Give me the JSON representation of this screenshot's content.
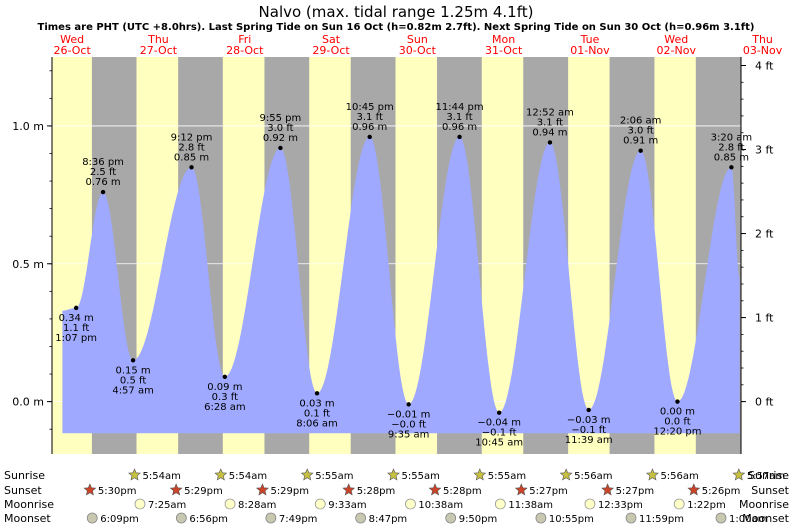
{
  "header": {
    "title": "Nalvo (max. tidal range 1.25m 4.1ft)",
    "subtitle": "Times are PHT (UTC +8.0hrs). Last Spring Tide on Sun 16 Oct (h=0.82m 2.7ft). Next Spring Tide on Sun 30 Oct (h=0.96m 3.1ft)"
  },
  "colors": {
    "day": "#ffffc0",
    "night": "#a8a8a8",
    "tide": "#9fa9ff",
    "red_date": "#ff0000",
    "grid": "#ffffff"
  },
  "chart_data": {
    "type": "area",
    "title": "Nalvo (max. tidal range 1.25m 4.1ft)",
    "x_unit": "hours since Wed 26-Oct 00:00 PHT",
    "xlim": [
      6.4,
      198.0
    ],
    "y_left": {
      "ylim": [
        -0.19,
        1.25
      ],
      "ticks": [
        0.0,
        0.5,
        1.0
      ],
      "tick_labels": [
        "0.0 m",
        "0.5 m",
        "1.0 m"
      ]
    },
    "y_right": {
      "ticks_ft": [
        0,
        1,
        2,
        3,
        4
      ],
      "tick_labels": [
        "0 ft",
        "1 ft",
        "2 ft",
        "3 ft",
        "4 ft"
      ]
    },
    "days": [
      {
        "dow": "Wed",
        "date": "26-Oct",
        "noon": 12
      },
      {
        "dow": "Thu",
        "date": "27-Oct",
        "noon": 36
      },
      {
        "dow": "Fri",
        "date": "28-Oct",
        "noon": 60
      },
      {
        "dow": "Sat",
        "date": "29-Oct",
        "noon": 84
      },
      {
        "dow": "Sun",
        "date": "30-Oct",
        "noon": 108
      },
      {
        "dow": "Mon",
        "date": "31-Oct",
        "noon": 132
      },
      {
        "dow": "Tue",
        "date": "01-Nov",
        "noon": 156
      },
      {
        "dow": "Wed",
        "date": "02-Nov",
        "noon": 180
      },
      {
        "dow": "Thu",
        "date": "03-Nov",
        "noon": 204
      }
    ],
    "sun": [
      {
        "sunrise": "5:54am",
        "sunset": "5:30pm",
        "rise_h": 29.9,
        "set_h": 17.5
      },
      {
        "sunrise": "5:54am",
        "sunset": "5:29pm",
        "rise_h": 53.9,
        "set_h": 41.48
      },
      {
        "sunrise": "5:55am",
        "sunset": "5:29pm",
        "rise_h": 77.92,
        "set_h": 65.48
      },
      {
        "sunrise": "5:55am",
        "sunset": "5:28pm",
        "rise_h": 101.92,
        "set_h": 89.47
      },
      {
        "sunrise": "5:55am",
        "sunset": "5:28pm",
        "rise_h": 125.92,
        "set_h": 113.47
      },
      {
        "sunrise": "5:56am",
        "sunset": "5:27pm",
        "rise_h": 149.93,
        "set_h": 137.45
      },
      {
        "sunrise": "5:56am",
        "sunset": "5:27pm",
        "rise_h": 173.93,
        "set_h": 161.45
      },
      {
        "sunrise": "5:57am",
        "sunset": "5:26pm",
        "rise_h": 197.95,
        "set_h": 185.43
      }
    ],
    "moonrise": [
      {
        "time": "7:25am",
        "h": 31.42
      },
      {
        "time": "8:28am",
        "h": 56.47
      },
      {
        "time": "9:33am",
        "h": 81.55
      },
      {
        "time": "10:38am",
        "h": 106.63
      },
      {
        "time": "11:38am",
        "h": 131.63
      },
      {
        "time": "12:33pm",
        "h": 156.55
      },
      {
        "time": "1:22pm",
        "h": 181.37
      }
    ],
    "moonset": [
      {
        "time": "6:09pm",
        "h": 18.15
      },
      {
        "time": "6:56pm",
        "h": 42.93
      },
      {
        "time": "7:49pm",
        "h": 67.82
      },
      {
        "time": "8:47pm",
        "h": 92.78
      },
      {
        "time": "9:50pm",
        "h": 117.83
      },
      {
        "time": "10:55pm",
        "h": 142.92
      },
      {
        "time": "11:59pm",
        "h": 167.98
      },
      {
        "time": "1:00am",
        "h": 193.0
      }
    ],
    "extremes": [
      {
        "type": "low",
        "h": 13.12,
        "m": 0.34,
        "m_label": "0.34 m",
        "ft_label": "1.1 ft",
        "time": "1:07 pm"
      },
      {
        "type": "high",
        "h": 20.6,
        "m": 0.76,
        "m_label": "0.76 m",
        "ft_label": "2.5 ft",
        "time": "8:36 pm"
      },
      {
        "type": "low",
        "h": 28.95,
        "m": 0.15,
        "m_label": "0.15 m",
        "ft_label": "0.5 ft",
        "time": "4:57 am"
      },
      {
        "type": "high",
        "h": 45.2,
        "m": 0.85,
        "m_label": "0.85 m",
        "ft_label": "2.8 ft",
        "time": "9:12 pm"
      },
      {
        "type": "low",
        "h": 54.47,
        "m": 0.09,
        "m_label": "0.09 m",
        "ft_label": "0.3 ft",
        "time": "6:28 am"
      },
      {
        "type": "high",
        "h": 69.92,
        "m": 0.92,
        "m_label": "0.92 m",
        "ft_label": "3.0 ft",
        "time": "9:55 pm"
      },
      {
        "type": "low",
        "h": 80.1,
        "m": 0.03,
        "m_label": "0.03 m",
        "ft_label": "0.1 ft",
        "time": "8:06 am"
      },
      {
        "type": "high",
        "h": 94.75,
        "m": 0.96,
        "m_label": "0.96 m",
        "ft_label": "3.1 ft",
        "time": "10:45 pm"
      },
      {
        "type": "low",
        "h": 105.58,
        "m": -0.01,
        "m_label": "−0.01 m",
        "ft_label": "−0.0 ft",
        "time": "9:35 am"
      },
      {
        "type": "high",
        "h": 119.73,
        "m": 0.96,
        "m_label": "0.96 m",
        "ft_label": "3.1 ft",
        "time": "11:44 pm"
      },
      {
        "type": "low",
        "h": 130.75,
        "m": -0.04,
        "m_label": "−0.04 m",
        "ft_label": "−0.1 ft",
        "time": "10:45 am"
      },
      {
        "type": "high",
        "h": 144.87,
        "m": 0.94,
        "m_label": "0.94 m",
        "ft_label": "3.1 ft",
        "time": "12:52 am"
      },
      {
        "type": "low",
        "h": 155.65,
        "m": -0.03,
        "m_label": "−0.03 m",
        "ft_label": "−0.1 ft",
        "time": "11:39 am"
      },
      {
        "type": "high",
        "h": 170.1,
        "m": 0.91,
        "m_label": "0.91 m",
        "ft_label": "3.0 ft",
        "time": "2:06 am"
      },
      {
        "type": "low",
        "h": 180.33,
        "m": 0.0,
        "m_label": "0.00 m",
        "ft_label": "0.0 ft",
        "time": "12:20 pm"
      },
      {
        "type": "high",
        "h": 195.33,
        "m": 0.85,
        "m_label": "0.85 m",
        "ft_label": "2.8 ft",
        "time": "3:20 am"
      }
    ],
    "curve_start": {
      "h": 9.3,
      "m": 0.33
    },
    "curve_end": {
      "h": 197.6,
      "m": 0.45
    }
  },
  "bottom_labels": {
    "sunrise": "Sunrise",
    "sunset": "Sunset",
    "moonrise": "Moonrise",
    "moonset": "Moonset"
  }
}
